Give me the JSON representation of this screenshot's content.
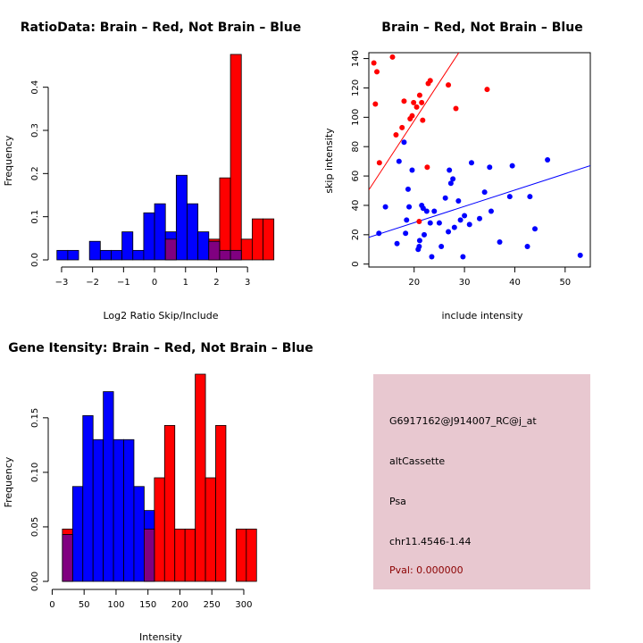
{
  "chart_data": [
    {
      "type": "bar",
      "title": "RatioData: Brain – Red, Not Brain – Blue",
      "xlabel": "Log2 Ratio Skip/Include",
      "ylabel": "Frequency",
      "xlim": [
        -3.2,
        3.6
      ],
      "ylim": [
        0,
        0.48
      ],
      "xticks": [
        "−3",
        "−2",
        "−1",
        "0",
        "1",
        "2",
        "3"
      ],
      "xtick_values": [
        -3,
        -2,
        -1,
        0,
        1,
        2,
        3
      ],
      "yticks": [
        "0.0",
        "0.1",
        "0.2",
        "0.3",
        "0.4"
      ],
      "ytick_values": [
        0,
        0.1,
        0.2,
        0.3,
        0.4
      ],
      "bin_width": 0.35,
      "series": [
        {
          "name": "Not Brain",
          "color": "#0000ff",
          "bins": [
            [
              -3.15,
              0.022
            ],
            [
              -2.8,
              0.022
            ],
            [
              -2.1,
              0.043
            ],
            [
              -1.75,
              0.022
            ],
            [
              -1.4,
              0.022
            ],
            [
              -1.05,
              0.065
            ],
            [
              -0.7,
              0.022
            ],
            [
              -0.35,
              0.109
            ],
            [
              0.0,
              0.13
            ],
            [
              0.35,
              0.065
            ],
            [
              0.7,
              0.196
            ],
            [
              1.05,
              0.13
            ],
            [
              1.4,
              0.065
            ],
            [
              1.75,
              0.043
            ],
            [
              2.1,
              0.022
            ],
            [
              2.45,
              0.022
            ]
          ]
        },
        {
          "name": "Brain",
          "color": "#ff0000",
          "bins": [
            [
              0.35,
              0.048
            ],
            [
              1.75,
              0.048
            ],
            [
              2.1,
              0.19
            ],
            [
              2.45,
              0.476
            ],
            [
              2.8,
              0.048
            ],
            [
              3.15,
              0.095
            ],
            [
              3.5,
              0.095
            ]
          ]
        }
      ],
      "overlap_color": "#800080"
    },
    {
      "type": "scatter",
      "title": "Brain – Red, Not Brain – Blue",
      "xlabel": "include intensity",
      "ylabel": "skip intensity",
      "xlim": [
        11,
        55
      ],
      "ylim": [
        -2,
        144
      ],
      "xticks": [
        "20",
        "30",
        "40",
        "50"
      ],
      "xtick_values": [
        20,
        30,
        40,
        50
      ],
      "yticks": [
        "0",
        "20",
        "40",
        "60",
        "80",
        "100",
        "120",
        "140"
      ],
      "ytick_values": [
        0,
        20,
        40,
        60,
        80,
        100,
        120,
        140
      ],
      "series": [
        {
          "name": "Brain",
          "color": "#ff0000",
          "fit": {
            "intercept": -7.0,
            "slope": 5.23
          },
          "x": [
            12.0,
            12.3,
            12.6,
            13.1,
            15.7,
            16.4,
            17.6,
            18.0,
            19.2,
            19.6,
            19.9,
            20.5,
            21.0,
            21.1,
            21.5,
            21.7,
            22.6,
            22.8,
            23.2,
            26.8,
            28.3,
            34.5
          ],
          "y": [
            137,
            109,
            131,
            69,
            141,
            88,
            93,
            111,
            99,
            101,
            110,
            107,
            29,
            115,
            110,
            98,
            66,
            123,
            125,
            122,
            106,
            119
          ]
        },
        {
          "name": "Not Brain",
          "color": "#0000ff",
          "fit": {
            "intercept": 6.0,
            "slope": 1.11
          },
          "x": [
            13.0,
            14.3,
            16.6,
            17.0,
            18.0,
            18.3,
            18.5,
            18.8,
            19.0,
            19.6,
            20.8,
            21.0,
            21.1,
            21.5,
            21.8,
            22.0,
            22.5,
            23.2,
            23.5,
            24.0,
            25.0,
            25.4,
            26.2,
            26.8,
            27.0,
            27.3,
            27.7,
            28.0,
            28.8,
            29.2,
            29.7,
            30.0,
            31.0,
            31.4,
            33.0,
            34.0,
            35.0,
            35.3,
            37.0,
            39.0,
            39.5,
            42.5,
            43.0,
            44.0,
            46.5,
            53.0
          ],
          "y": [
            21,
            39,
            14,
            70,
            83,
            21,
            30,
            51,
            39,
            64,
            10,
            12,
            16,
            40,
            38,
            20,
            36,
            28,
            5,
            36,
            28,
            12,
            45,
            22,
            64,
            55,
            58,
            25,
            43,
            30,
            5,
            33,
            27,
            69,
            31,
            49,
            66,
            36,
            15,
            46,
            67,
            12,
            46,
            24,
            71,
            6
          ]
        }
      ]
    },
    {
      "type": "bar",
      "title": "Gene Itensity: Brain – Red, Not Brain – Blue",
      "xlabel": "Intensity",
      "ylabel": "Frequency",
      "xlim": [
        5,
        335
      ],
      "ylim": [
        0,
        0.19
      ],
      "xticks": [
        "0",
        "50",
        "100",
        "150",
        "200",
        "250",
        "300"
      ],
      "xtick_values": [
        0,
        50,
        100,
        150,
        200,
        250,
        300
      ],
      "yticks": [
        "0.00",
        "0.05",
        "0.10",
        "0.15"
      ],
      "ytick_values": [
        0,
        0.05,
        0.1,
        0.15
      ],
      "bin_width": 16,
      "series": [
        {
          "name": "Not Brain",
          "color": "#0000ff",
          "bins": [
            [
              16,
              0.043
            ],
            [
              32,
              0.087
            ],
            [
              48,
              0.152
            ],
            [
              64,
              0.13
            ],
            [
              80,
              0.174
            ],
            [
              96,
              0.13
            ],
            [
              112,
              0.13
            ],
            [
              128,
              0.087
            ],
            [
              144,
              0.065
            ]
          ]
        },
        {
          "name": "Brain",
          "color": "#ff0000",
          "bins": [
            [
              16,
              0.048
            ],
            [
              144,
              0.048
            ],
            [
              160,
              0.095
            ],
            [
              176,
              0.143
            ],
            [
              192,
              0.048
            ],
            [
              208,
              0.048
            ],
            [
              224,
              0.19
            ],
            [
              240,
              0.095
            ],
            [
              256,
              0.143
            ],
            [
              288,
              0.048
            ],
            [
              304,
              0.048
            ]
          ]
        }
      ],
      "overlap_color": "#800080"
    }
  ],
  "info_panel": {
    "probe_id": "G6917162@J914007_RC@j_at",
    "event_type": "altCassette",
    "gene": "Psa",
    "location": "chr11.4546-1.44",
    "pval": "Pval: 0.000000",
    "background_color": "#e8c8d0",
    "pval_color": "#8b0000"
  }
}
